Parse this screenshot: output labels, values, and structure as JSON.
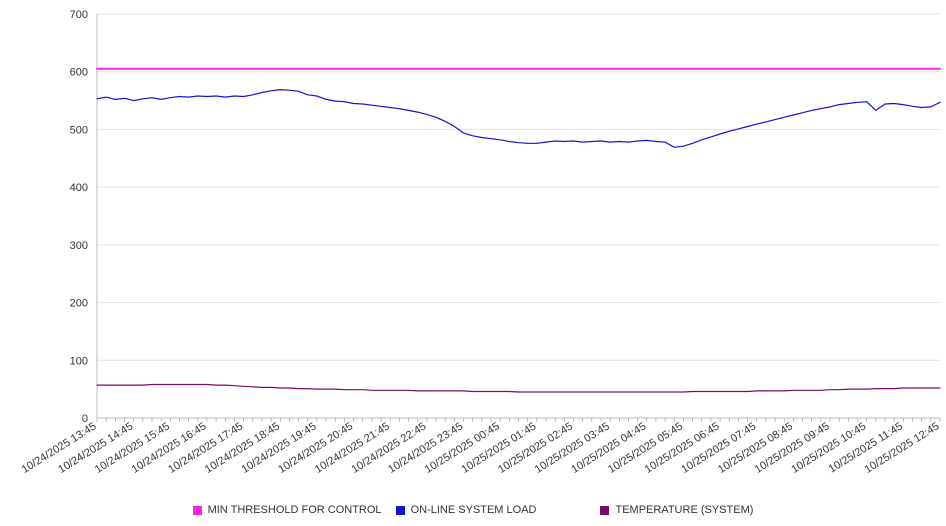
{
  "chart_data": {
    "type": "line",
    "title": "",
    "xlabel": "",
    "ylabel": "",
    "ylim": [
      0,
      700
    ],
    "y_ticks": [
      0,
      100,
      200,
      300,
      400,
      500,
      600,
      700
    ],
    "grid": true,
    "legend_position": "bottom",
    "points_per_label": 4,
    "n_points": 93,
    "x_labels": [
      "10/24/2025 13:45",
      "10/24/2025 14:45",
      "10/24/2025 15:45",
      "10/24/2025 16:45",
      "10/24/2025 17:45",
      "10/24/2025 18:45",
      "10/24/2025 19:45",
      "10/24/2025 20:45",
      "10/24/2025 21:45",
      "10/24/2025 22:45",
      "10/24/2025 23:45",
      "10/25/2025 00:45",
      "10/25/2025 01:45",
      "10/25/2025 02:45",
      "10/25/2025 03:45",
      "10/25/2025 04:45",
      "10/25/2025 05:45",
      "10/25/2025 06:45",
      "10/25/2025 07:45",
      "10/25/2025 08:45",
      "10/25/2025 09:45",
      "10/25/2025 10:45",
      "10/25/2025 11:45",
      "10/25/2025 12:45"
    ],
    "series": [
      {
        "name": "MIN THRESHOLD FOR CONTROL",
        "color": "#ff22dd",
        "constant": 605,
        "stroke_width": 2
      },
      {
        "name": "ON-LINE SYSTEM LOAD",
        "color": "#1515cc",
        "stroke_width": 1.2,
        "values": [
          553,
          556,
          552,
          554,
          550,
          553,
          555,
          552,
          555,
          557,
          556,
          558,
          557,
          558,
          556,
          558,
          557,
          560,
          564,
          567,
          569,
          568,
          566,
          560,
          558,
          552,
          549,
          548,
          545,
          544,
          542,
          540,
          538,
          536,
          533,
          530,
          526,
          521,
          514,
          505,
          494,
          489,
          486,
          484,
          482,
          479,
          477,
          476,
          476,
          478,
          480,
          479,
          480,
          478,
          479,
          480,
          478,
          479,
          478,
          480,
          481,
          479,
          478,
          469,
          471,
          476,
          482,
          487,
          492,
          497,
          501,
          505,
          509,
          513,
          517,
          521,
          525,
          529,
          533,
          536,
          539,
          543,
          545,
          547,
          548,
          533,
          544,
          545,
          543,
          540,
          538,
          539,
          547
        ]
      },
      {
        "name": "TEMPERATURE (SYSTEM)",
        "color": "#7a0a66",
        "stroke_width": 1.2,
        "values": [
          57,
          57,
          57,
          57,
          57,
          57,
          58,
          58,
          58,
          58,
          58,
          58,
          58,
          57,
          57,
          56,
          55,
          54,
          53,
          53,
          52,
          52,
          51,
          51,
          50,
          50,
          50,
          49,
          49,
          49,
          48,
          48,
          48,
          48,
          48,
          47,
          47,
          47,
          47,
          47,
          47,
          46,
          46,
          46,
          46,
          46,
          45,
          45,
          45,
          45,
          45,
          45,
          45,
          45,
          45,
          45,
          45,
          45,
          45,
          45,
          45,
          45,
          45,
          45,
          45,
          46,
          46,
          46,
          46,
          46,
          46,
          46,
          47,
          47,
          47,
          47,
          48,
          48,
          48,
          48,
          49,
          49,
          50,
          50,
          50,
          51,
          51,
          51,
          52,
          52,
          52,
          52,
          52
        ]
      }
    ],
    "axis_color": "#bbbbbb",
    "grid_color": "#e4e4e4",
    "tick_color": "#999999",
    "label_font_size": 11
  },
  "legend": {
    "items": [
      {
        "label": "MIN THRESHOLD FOR CONTROL"
      },
      {
        "label": "ON-LINE SYSTEM LOAD"
      },
      {
        "label": "TEMPERATURE (SYSTEM)"
      }
    ]
  }
}
